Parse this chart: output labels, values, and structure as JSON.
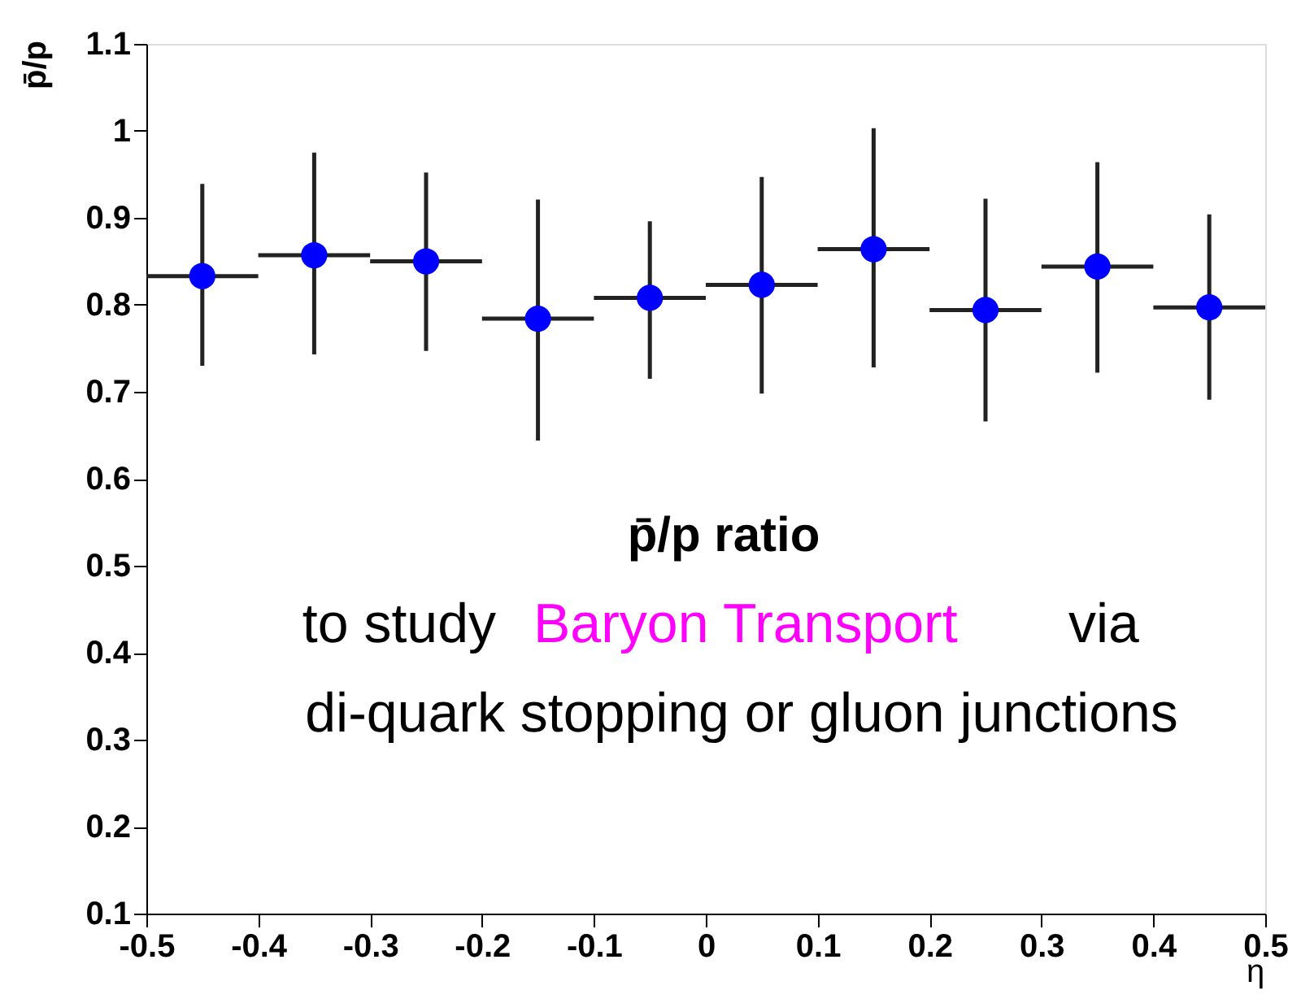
{
  "chart_data": {
    "type": "scatter",
    "x": [
      -0.45,
      -0.35,
      -0.25,
      -0.15,
      -0.05,
      0.05,
      0.15,
      0.25,
      0.35,
      0.45
    ],
    "values": [
      0.833,
      0.857,
      0.85,
      0.784,
      0.808,
      0.823,
      0.864,
      0.794,
      0.844,
      0.797
    ],
    "errors": [
      [
        0.73,
        0.939
      ],
      [
        0.743,
        0.975
      ],
      [
        0.747,
        0.952
      ],
      [
        0.644,
        0.921
      ],
      [
        0.715,
        0.896
      ],
      [
        0.698,
        0.947
      ],
      [
        0.728,
        1.003
      ],
      [
        0.666,
        0.922
      ],
      [
        0.722,
        0.964
      ],
      [
        0.691,
        0.904
      ]
    ],
    "xerrors": [
      0.05,
      0.05,
      0.05,
      0.05,
      0.05,
      0.05,
      0.05,
      0.05,
      0.05,
      0.05
    ],
    "color": "#0000ff",
    "marker": "circle",
    "grid": false,
    "legend": false,
    "xlabel": "η",
    "ylabel": "p̄/p",
    "xlim": [
      -0.5,
      0.5
    ],
    "xticks": [
      -0.5,
      -0.4,
      -0.3,
      -0.2,
      -0.1,
      0,
      0.1,
      0.2,
      0.3,
      0.4,
      0.5
    ],
    "ylim": [
      0.1,
      1.1
    ],
    "yticks": [
      0.1,
      0.2,
      0.3,
      0.4,
      0.5,
      0.6,
      0.7,
      0.8,
      0.9,
      1,
      1.1
    ],
    "annotations": [
      "p̄/p ratio",
      "to study",
      "Baryon Transport",
      "via",
      "di-quark stopping or gluon junctions"
    ]
  }
}
